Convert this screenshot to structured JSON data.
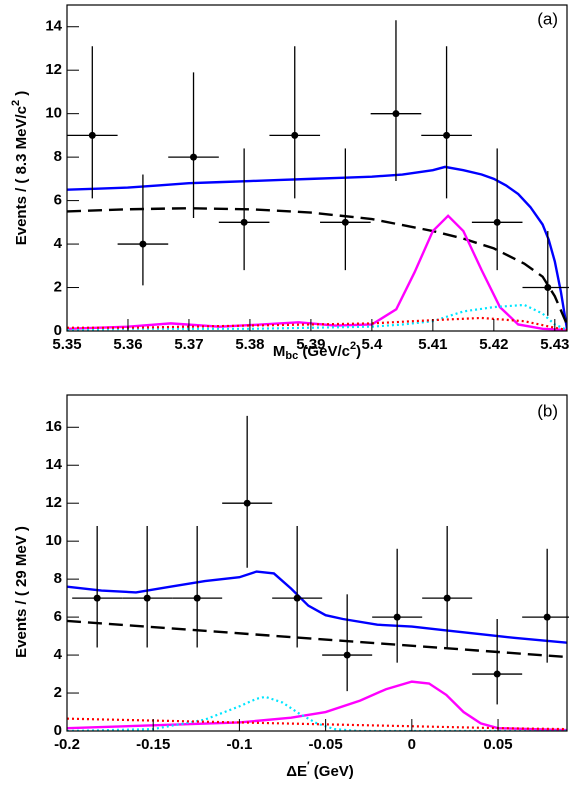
{
  "chart_data": [
    {
      "type": "errorbar",
      "label": "(a)",
      "xlabel": [
        "M",
        "bc",
        " (GeV/c",
        "2",
        ")"
      ],
      "ylabel": [
        "Events / ( 8.3 MeV/c",
        "2",
        " )"
      ],
      "xlim": [
        5.35,
        5.432
      ],
      "ylim": [
        0,
        15
      ],
      "xticks": [
        5.35,
        5.36,
        5.37,
        5.38,
        5.39,
        5.4,
        5.41,
        5.42,
        5.43
      ],
      "yticks": [
        0,
        2,
        4,
        6,
        8,
        10,
        12,
        14
      ],
      "points": {
        "color": "#000000",
        "xerr": 0.00415,
        "x": [
          5.35415,
          5.36245,
          5.37075,
          5.37905,
          5.38735,
          5.39565,
          5.40395,
          5.41225,
          5.42055,
          5.42885
        ],
        "y": [
          9,
          4,
          8,
          5,
          9,
          5,
          10,
          9,
          5,
          2
        ],
        "yerr_low": [
          2.9,
          1.9,
          2.8,
          2.2,
          2.9,
          2.2,
          3.1,
          2.9,
          2.2,
          1.3
        ],
        "yerr_high": [
          4.1,
          3.2,
          3.9,
          3.4,
          4.1,
          3.4,
          4.3,
          4.1,
          3.4,
          2.6
        ]
      },
      "series": [
        {
          "color": "#0000ff",
          "style": "solid",
          "x": [
            5.35,
            5.355,
            5.36,
            5.365,
            5.37,
            5.375,
            5.38,
            5.385,
            5.39,
            5.395,
            5.4,
            5.405,
            5.41,
            5.412,
            5.415,
            5.418,
            5.42,
            5.422,
            5.424,
            5.426,
            5.428,
            5.429,
            5.43,
            5.431,
            5.432
          ],
          "values": [
            6.5,
            6.55,
            6.6,
            6.7,
            6.8,
            6.85,
            6.9,
            6.95,
            7.0,
            7.05,
            7.1,
            7.2,
            7.4,
            7.55,
            7.4,
            7.2,
            7.0,
            6.7,
            6.3,
            5.7,
            4.9,
            4.2,
            3.2,
            1.8,
            0.1
          ]
        },
        {
          "color": "#000000",
          "style": "dashed",
          "x": [
            5.35,
            5.36,
            5.37,
            5.38,
            5.39,
            5.4,
            5.41,
            5.415,
            5.42,
            5.425,
            5.428,
            5.43,
            5.432
          ],
          "values": [
            5.5,
            5.6,
            5.65,
            5.6,
            5.45,
            5.15,
            4.6,
            4.25,
            3.8,
            3.1,
            2.5,
            1.6,
            0.3
          ]
        },
        {
          "color": "#ff00ff",
          "style": "solid",
          "x": [
            5.35,
            5.36,
            5.367,
            5.375,
            5.382,
            5.388,
            5.394,
            5.4,
            5.404,
            5.407,
            5.41,
            5.4125,
            5.415,
            5.418,
            5.421,
            5.424,
            5.428,
            5.432
          ],
          "values": [
            0.1,
            0.2,
            0.35,
            0.2,
            0.3,
            0.4,
            0.25,
            0.3,
            1.0,
            2.7,
            4.6,
            5.3,
            4.6,
            2.8,
            1.1,
            0.3,
            0.1,
            0.05
          ]
        },
        {
          "color": "#00e5ff",
          "style": "dotted",
          "x": [
            5.35,
            5.36,
            5.37,
            5.38,
            5.39,
            5.4,
            5.405,
            5.41,
            5.415,
            5.42,
            5.425,
            5.428,
            5.43,
            5.432
          ],
          "values": [
            0.05,
            0.1,
            0.1,
            0.1,
            0.15,
            0.2,
            0.3,
            0.45,
            0.9,
            1.1,
            1.2,
            0.8,
            0.3,
            0.05
          ]
        },
        {
          "color": "#ff0000",
          "style": "dotted",
          "x": [
            5.35,
            5.36,
            5.37,
            5.38,
            5.39,
            5.4,
            5.41,
            5.418,
            5.425,
            5.43,
            5.432
          ],
          "values": [
            0.15,
            0.15,
            0.2,
            0.25,
            0.3,
            0.35,
            0.5,
            0.6,
            0.45,
            0.15,
            0.05
          ]
        }
      ]
    },
    {
      "type": "errorbar",
      "label": "(b)",
      "xlabel": [
        "ΔE",
        "′",
        " (GeV)"
      ],
      "ylabel": [
        "Events / ( 29 MeV )"
      ],
      "xlim": [
        -0.2,
        0.09
      ],
      "ylim": [
        0,
        17.7
      ],
      "xticks": [
        -0.2,
        -0.15,
        -0.1,
        -0.05,
        0,
        0.05
      ],
      "yticks": [
        0,
        2,
        4,
        6,
        8,
        10,
        12,
        14,
        16
      ],
      "points": {
        "color": "#000000",
        "xerr": 0.0145,
        "x": [
          -0.1825,
          -0.1535,
          -0.1245,
          -0.0955,
          -0.0665,
          -0.0375,
          -0.0085,
          0.0205,
          0.0495,
          0.0785
        ],
        "y": [
          7,
          7,
          7,
          12,
          7,
          4,
          6,
          7,
          3,
          6
        ],
        "yerr_low": [
          2.6,
          2.6,
          2.6,
          3.4,
          2.6,
          1.9,
          2.4,
          2.6,
          1.6,
          2.4
        ],
        "yerr_high": [
          3.8,
          3.8,
          3.8,
          4.6,
          3.8,
          3.2,
          3.6,
          3.8,
          2.9,
          3.6
        ]
      },
      "series": [
        {
          "color": "#0000ff",
          "style": "solid",
          "x": [
            -0.2,
            -0.18,
            -0.16,
            -0.14,
            -0.12,
            -0.1,
            -0.09,
            -0.08,
            -0.07,
            -0.06,
            -0.05,
            -0.04,
            -0.02,
            0,
            0.02,
            0.04,
            0.06,
            0.09
          ],
          "values": [
            7.6,
            7.4,
            7.3,
            7.6,
            7.9,
            8.1,
            8.4,
            8.3,
            7.5,
            6.6,
            6.1,
            5.9,
            5.6,
            5.5,
            5.3,
            5.1,
            4.9,
            4.65
          ]
        },
        {
          "color": "#000000",
          "style": "dashed",
          "x": [
            -0.2,
            0.09
          ],
          "values": [
            5.8,
            3.9
          ]
        },
        {
          "color": "#ff00ff",
          "style": "solid",
          "x": [
            -0.2,
            -0.15,
            -0.1,
            -0.07,
            -0.05,
            -0.03,
            -0.015,
            0,
            0.01,
            0.02,
            0.03,
            0.04,
            0.05,
            0.09
          ],
          "values": [
            0.15,
            0.3,
            0.45,
            0.7,
            1.0,
            1.6,
            2.2,
            2.6,
            2.5,
            1.9,
            1.0,
            0.4,
            0.15,
            0.05
          ]
        },
        {
          "color": "#00e5ff",
          "style": "dotted",
          "x": [
            -0.2,
            -0.15,
            -0.12,
            -0.1,
            -0.09,
            -0.085,
            -0.075,
            -0.065,
            -0.055,
            -0.045,
            -0.03,
            0.09
          ],
          "values": [
            0,
            0.1,
            0.6,
            1.3,
            1.7,
            1.8,
            1.5,
            0.9,
            0.4,
            0.1,
            0,
            0
          ]
        },
        {
          "color": "#ff0000",
          "style": "dotted",
          "x": [
            -0.2,
            -0.15,
            -0.1,
            -0.05,
            0,
            0.05,
            0.09
          ],
          "values": [
            0.65,
            0.55,
            0.45,
            0.35,
            0.25,
            0.15,
            0.1
          ]
        }
      ]
    }
  ]
}
